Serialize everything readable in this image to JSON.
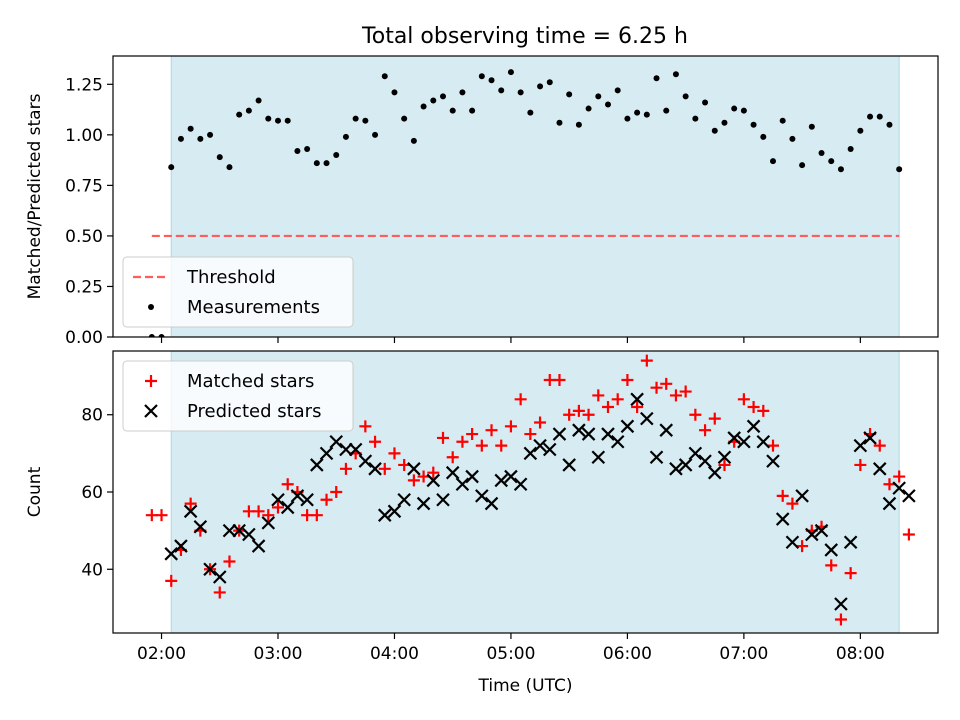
{
  "figure": {
    "title": "Total observing time = 6.25 h"
  },
  "colors": {
    "span": "#add8e6",
    "threshold": "#ff5c5c",
    "measurement": "#000000",
    "matched": "#ff0000",
    "predicted": "#000000"
  },
  "chart_data": [
    {
      "type": "scatter",
      "panel": "top",
      "title": "Total observing time = 6.25 h",
      "xlabel": "",
      "ylabel": "Matched/Predicted stars",
      "xlim": [
        "01:35",
        "08:40"
      ],
      "ylim": [
        0,
        1.39
      ],
      "xticks": [
        "02:00",
        "03:00",
        "04:00",
        "05:00",
        "06:00",
        "07:00",
        "08:00"
      ],
      "yticks": [
        "0.00",
        "0.25",
        "0.50",
        "0.75",
        "1.00",
        "1.25"
      ],
      "shaded_span": [
        "02:05",
        "08:20"
      ],
      "grid": false,
      "legend": "lower-left",
      "threshold": {
        "name": "Threshold",
        "value": 0.5,
        "x_range": [
          "01:55",
          "08:20"
        ]
      },
      "series": [
        {
          "name": "Measurements",
          "marker": "dot",
          "points": [
            [
              "01:55",
              0.0
            ],
            [
              "02:00",
              0.0
            ],
            [
              "02:05",
              0.84
            ],
            [
              "02:10",
              0.98
            ],
            [
              "02:15",
              1.03
            ],
            [
              "02:20",
              0.98
            ],
            [
              "02:25",
              1.0
            ],
            [
              "02:30",
              0.89
            ],
            [
              "02:35",
              0.84
            ],
            [
              "02:40",
              1.1
            ],
            [
              "02:45",
              1.12
            ],
            [
              "02:50",
              1.17
            ],
            [
              "02:55",
              1.08
            ],
            [
              "03:00",
              1.07
            ],
            [
              "03:05",
              1.07
            ],
            [
              "03:10",
              0.92
            ],
            [
              "03:15",
              0.93
            ],
            [
              "03:20",
              0.86
            ],
            [
              "03:25",
              0.86
            ],
            [
              "03:30",
              0.9
            ],
            [
              "03:35",
              0.99
            ],
            [
              "03:40",
              1.08
            ],
            [
              "03:45",
              1.07
            ],
            [
              "03:50",
              1.0
            ],
            [
              "03:55",
              1.29
            ],
            [
              "04:00",
              1.21
            ],
            [
              "04:05",
              1.08
            ],
            [
              "04:10",
              0.97
            ],
            [
              "04:15",
              1.14
            ],
            [
              "04:20",
              1.17
            ],
            [
              "04:25",
              1.19
            ],
            [
              "04:30",
              1.12
            ],
            [
              "04:35",
              1.21
            ],
            [
              "04:40",
              1.12
            ],
            [
              "04:45",
              1.29
            ],
            [
              "04:50",
              1.27
            ],
            [
              "04:55",
              1.22
            ],
            [
              "05:00",
              1.31
            ],
            [
              "05:05",
              1.21
            ],
            [
              "05:10",
              1.11
            ],
            [
              "05:15",
              1.24
            ],
            [
              "05:20",
              1.26
            ],
            [
              "05:25",
              1.06
            ],
            [
              "05:30",
              1.2
            ],
            [
              "05:35",
              1.05
            ],
            [
              "05:40",
              1.13
            ],
            [
              "05:45",
              1.19
            ],
            [
              "05:50",
              1.15
            ],
            [
              "05:55",
              1.22
            ],
            [
              "06:00",
              1.08
            ],
            [
              "06:05",
              1.11
            ],
            [
              "06:10",
              1.1
            ],
            [
              "06:15",
              1.28
            ],
            [
              "06:20",
              1.12
            ],
            [
              "06:25",
              1.3
            ],
            [
              "06:30",
              1.19
            ],
            [
              "06:35",
              1.08
            ],
            [
              "06:40",
              1.16
            ],
            [
              "06:45",
              1.02
            ],
            [
              "06:50",
              1.06
            ],
            [
              "06:55",
              1.13
            ],
            [
              "07:00",
              1.12
            ],
            [
              "07:05",
              1.05
            ],
            [
              "07:10",
              0.99
            ],
            [
              "07:15",
              0.87
            ],
            [
              "07:20",
              1.07
            ],
            [
              "07:25",
              0.98
            ],
            [
              "07:30",
              0.85
            ],
            [
              "07:35",
              1.04
            ],
            [
              "07:40",
              0.91
            ],
            [
              "07:45",
              0.87
            ],
            [
              "07:50",
              0.83
            ],
            [
              "07:55",
              0.93
            ],
            [
              "08:00",
              1.02
            ],
            [
              "08:05",
              1.09
            ],
            [
              "08:10",
              1.09
            ],
            [
              "08:15",
              1.05
            ],
            [
              "08:20",
              0.83
            ]
          ]
        }
      ]
    },
    {
      "type": "scatter",
      "panel": "bottom",
      "title": "",
      "xlabel": "Time (UTC)",
      "ylabel": "Count",
      "xlim": [
        "01:35",
        "08:40"
      ],
      "ylim": [
        23.5,
        96.5
      ],
      "xticks": [
        "02:00",
        "03:00",
        "04:00",
        "05:00",
        "06:00",
        "07:00",
        "08:00"
      ],
      "yticks": [
        "40",
        "60",
        "80"
      ],
      "shaded_span": [
        "02:05",
        "08:20"
      ],
      "grid": false,
      "legend": "upper-left",
      "series": [
        {
          "name": "Matched stars",
          "marker": "plus",
          "points": [
            [
              "01:55",
              54
            ],
            [
              "02:00",
              54
            ],
            [
              "02:05",
              37
            ],
            [
              "02:10",
              45
            ],
            [
              "02:15",
              57
            ],
            [
              "02:20",
              50
            ],
            [
              "02:25",
              40
            ],
            [
              "02:30",
              34
            ],
            [
              "02:35",
              42
            ],
            [
              "02:40",
              50
            ],
            [
              "02:45",
              55
            ],
            [
              "02:50",
              55
            ],
            [
              "02:55",
              54
            ],
            [
              "03:00",
              56
            ],
            [
              "03:05",
              62
            ],
            [
              "03:10",
              60
            ],
            [
              "03:15",
              54
            ],
            [
              "03:20",
              54
            ],
            [
              "03:25",
              58
            ],
            [
              "03:30",
              60
            ],
            [
              "03:35",
              66
            ],
            [
              "03:40",
              70
            ],
            [
              "03:45",
              77
            ],
            [
              "03:50",
              73
            ],
            [
              "03:55",
              66
            ],
            [
              "04:00",
              70
            ],
            [
              "04:05",
              67
            ],
            [
              "04:10",
              63
            ],
            [
              "04:15",
              64
            ],
            [
              "04:20",
              65
            ],
            [
              "04:25",
              74
            ],
            [
              "04:30",
              69
            ],
            [
              "04:35",
              73
            ],
            [
              "04:40",
              75
            ],
            [
              "04:45",
              72
            ],
            [
              "04:50",
              76
            ],
            [
              "04:55",
              72
            ],
            [
              "05:00",
              77
            ],
            [
              "05:05",
              84
            ],
            [
              "05:10",
              75
            ],
            [
              "05:15",
              78
            ],
            [
              "05:20",
              89
            ],
            [
              "05:25",
              89
            ],
            [
              "05:30",
              80
            ],
            [
              "05:35",
              81
            ],
            [
              "05:40",
              80
            ],
            [
              "05:45",
              85
            ],
            [
              "05:50",
              82
            ],
            [
              "05:55",
              84
            ],
            [
              "06:00",
              89
            ],
            [
              "06:05",
              82
            ],
            [
              "06:10",
              94
            ],
            [
              "06:15",
              87
            ],
            [
              "06:20",
              88
            ],
            [
              "06:25",
              85
            ],
            [
              "06:30",
              86
            ],
            [
              "06:35",
              80
            ],
            [
              "06:40",
              76
            ],
            [
              "06:45",
              79
            ],
            [
              "06:50",
              67
            ],
            [
              "06:55",
              73
            ],
            [
              "07:00",
              84
            ],
            [
              "07:05",
              82
            ],
            [
              "07:10",
              81
            ],
            [
              "07:15",
              72
            ],
            [
              "07:20",
              59
            ],
            [
              "07:25",
              57
            ],
            [
              "07:30",
              46
            ],
            [
              "07:35",
              50
            ],
            [
              "07:40",
              51
            ],
            [
              "07:45",
              41
            ],
            [
              "07:50",
              27
            ],
            [
              "07:55",
              39
            ],
            [
              "08:00",
              67
            ],
            [
              "08:05",
              75
            ],
            [
              "08:10",
              72
            ],
            [
              "08:15",
              62
            ],
            [
              "08:20",
              64
            ],
            [
              "08:25",
              49
            ]
          ]
        },
        {
          "name": "Predicted stars",
          "marker": "x",
          "points": [
            [
              "02:05",
              44
            ],
            [
              "02:10",
              46
            ],
            [
              "02:15",
              55
            ],
            [
              "02:20",
              51
            ],
            [
              "02:25",
              40
            ],
            [
              "02:30",
              38
            ],
            [
              "02:35",
              50
            ],
            [
              "02:40",
              50
            ],
            [
              "02:45",
              49
            ],
            [
              "02:50",
              46
            ],
            [
              "02:55",
              52
            ],
            [
              "03:00",
              58
            ],
            [
              "03:05",
              56
            ],
            [
              "03:10",
              59
            ],
            [
              "03:15",
              58
            ],
            [
              "03:20",
              67
            ],
            [
              "03:25",
              70
            ],
            [
              "03:30",
              73
            ],
            [
              "03:35",
              71
            ],
            [
              "03:40",
              71
            ],
            [
              "03:45",
              68
            ],
            [
              "03:50",
              66
            ],
            [
              "03:55",
              54
            ],
            [
              "04:00",
              55
            ],
            [
              "04:05",
              58
            ],
            [
              "04:10",
              66
            ],
            [
              "04:15",
              57
            ],
            [
              "04:20",
              63
            ],
            [
              "04:25",
              58
            ],
            [
              "04:30",
              65
            ],
            [
              "04:35",
              62
            ],
            [
              "04:40",
              64
            ],
            [
              "04:45",
              59
            ],
            [
              "04:50",
              57
            ],
            [
              "04:55",
              63
            ],
            [
              "05:00",
              64
            ],
            [
              "05:05",
              62
            ],
            [
              "05:10",
              70
            ],
            [
              "05:15",
              72
            ],
            [
              "05:20",
              71
            ],
            [
              "05:25",
              75
            ],
            [
              "05:30",
              67
            ],
            [
              "05:35",
              76
            ],
            [
              "05:40",
              75
            ],
            [
              "05:45",
              69
            ],
            [
              "05:50",
              75
            ],
            [
              "05:55",
              73
            ],
            [
              "06:00",
              77
            ],
            [
              "06:05",
              84
            ],
            [
              "06:10",
              79
            ],
            [
              "06:15",
              69
            ],
            [
              "06:20",
              76
            ],
            [
              "06:25",
              66
            ],
            [
              "06:30",
              67
            ],
            [
              "06:35",
              70
            ],
            [
              "06:40",
              68
            ],
            [
              "06:45",
              65
            ],
            [
              "06:50",
              69
            ],
            [
              "06:55",
              74
            ],
            [
              "07:00",
              73
            ],
            [
              "07:05",
              77
            ],
            [
              "07:10",
              73
            ],
            [
              "07:15",
              68
            ],
            [
              "07:20",
              53
            ],
            [
              "07:25",
              47
            ],
            [
              "07:30",
              59
            ],
            [
              "07:35",
              49
            ],
            [
              "07:40",
              50
            ],
            [
              "07:45",
              45
            ],
            [
              "07:50",
              31
            ],
            [
              "07:55",
              47
            ],
            [
              "08:00",
              72
            ],
            [
              "08:05",
              74
            ],
            [
              "08:10",
              66
            ],
            [
              "08:15",
              57
            ],
            [
              "08:20",
              61
            ],
            [
              "08:25",
              59
            ]
          ]
        }
      ]
    }
  ]
}
